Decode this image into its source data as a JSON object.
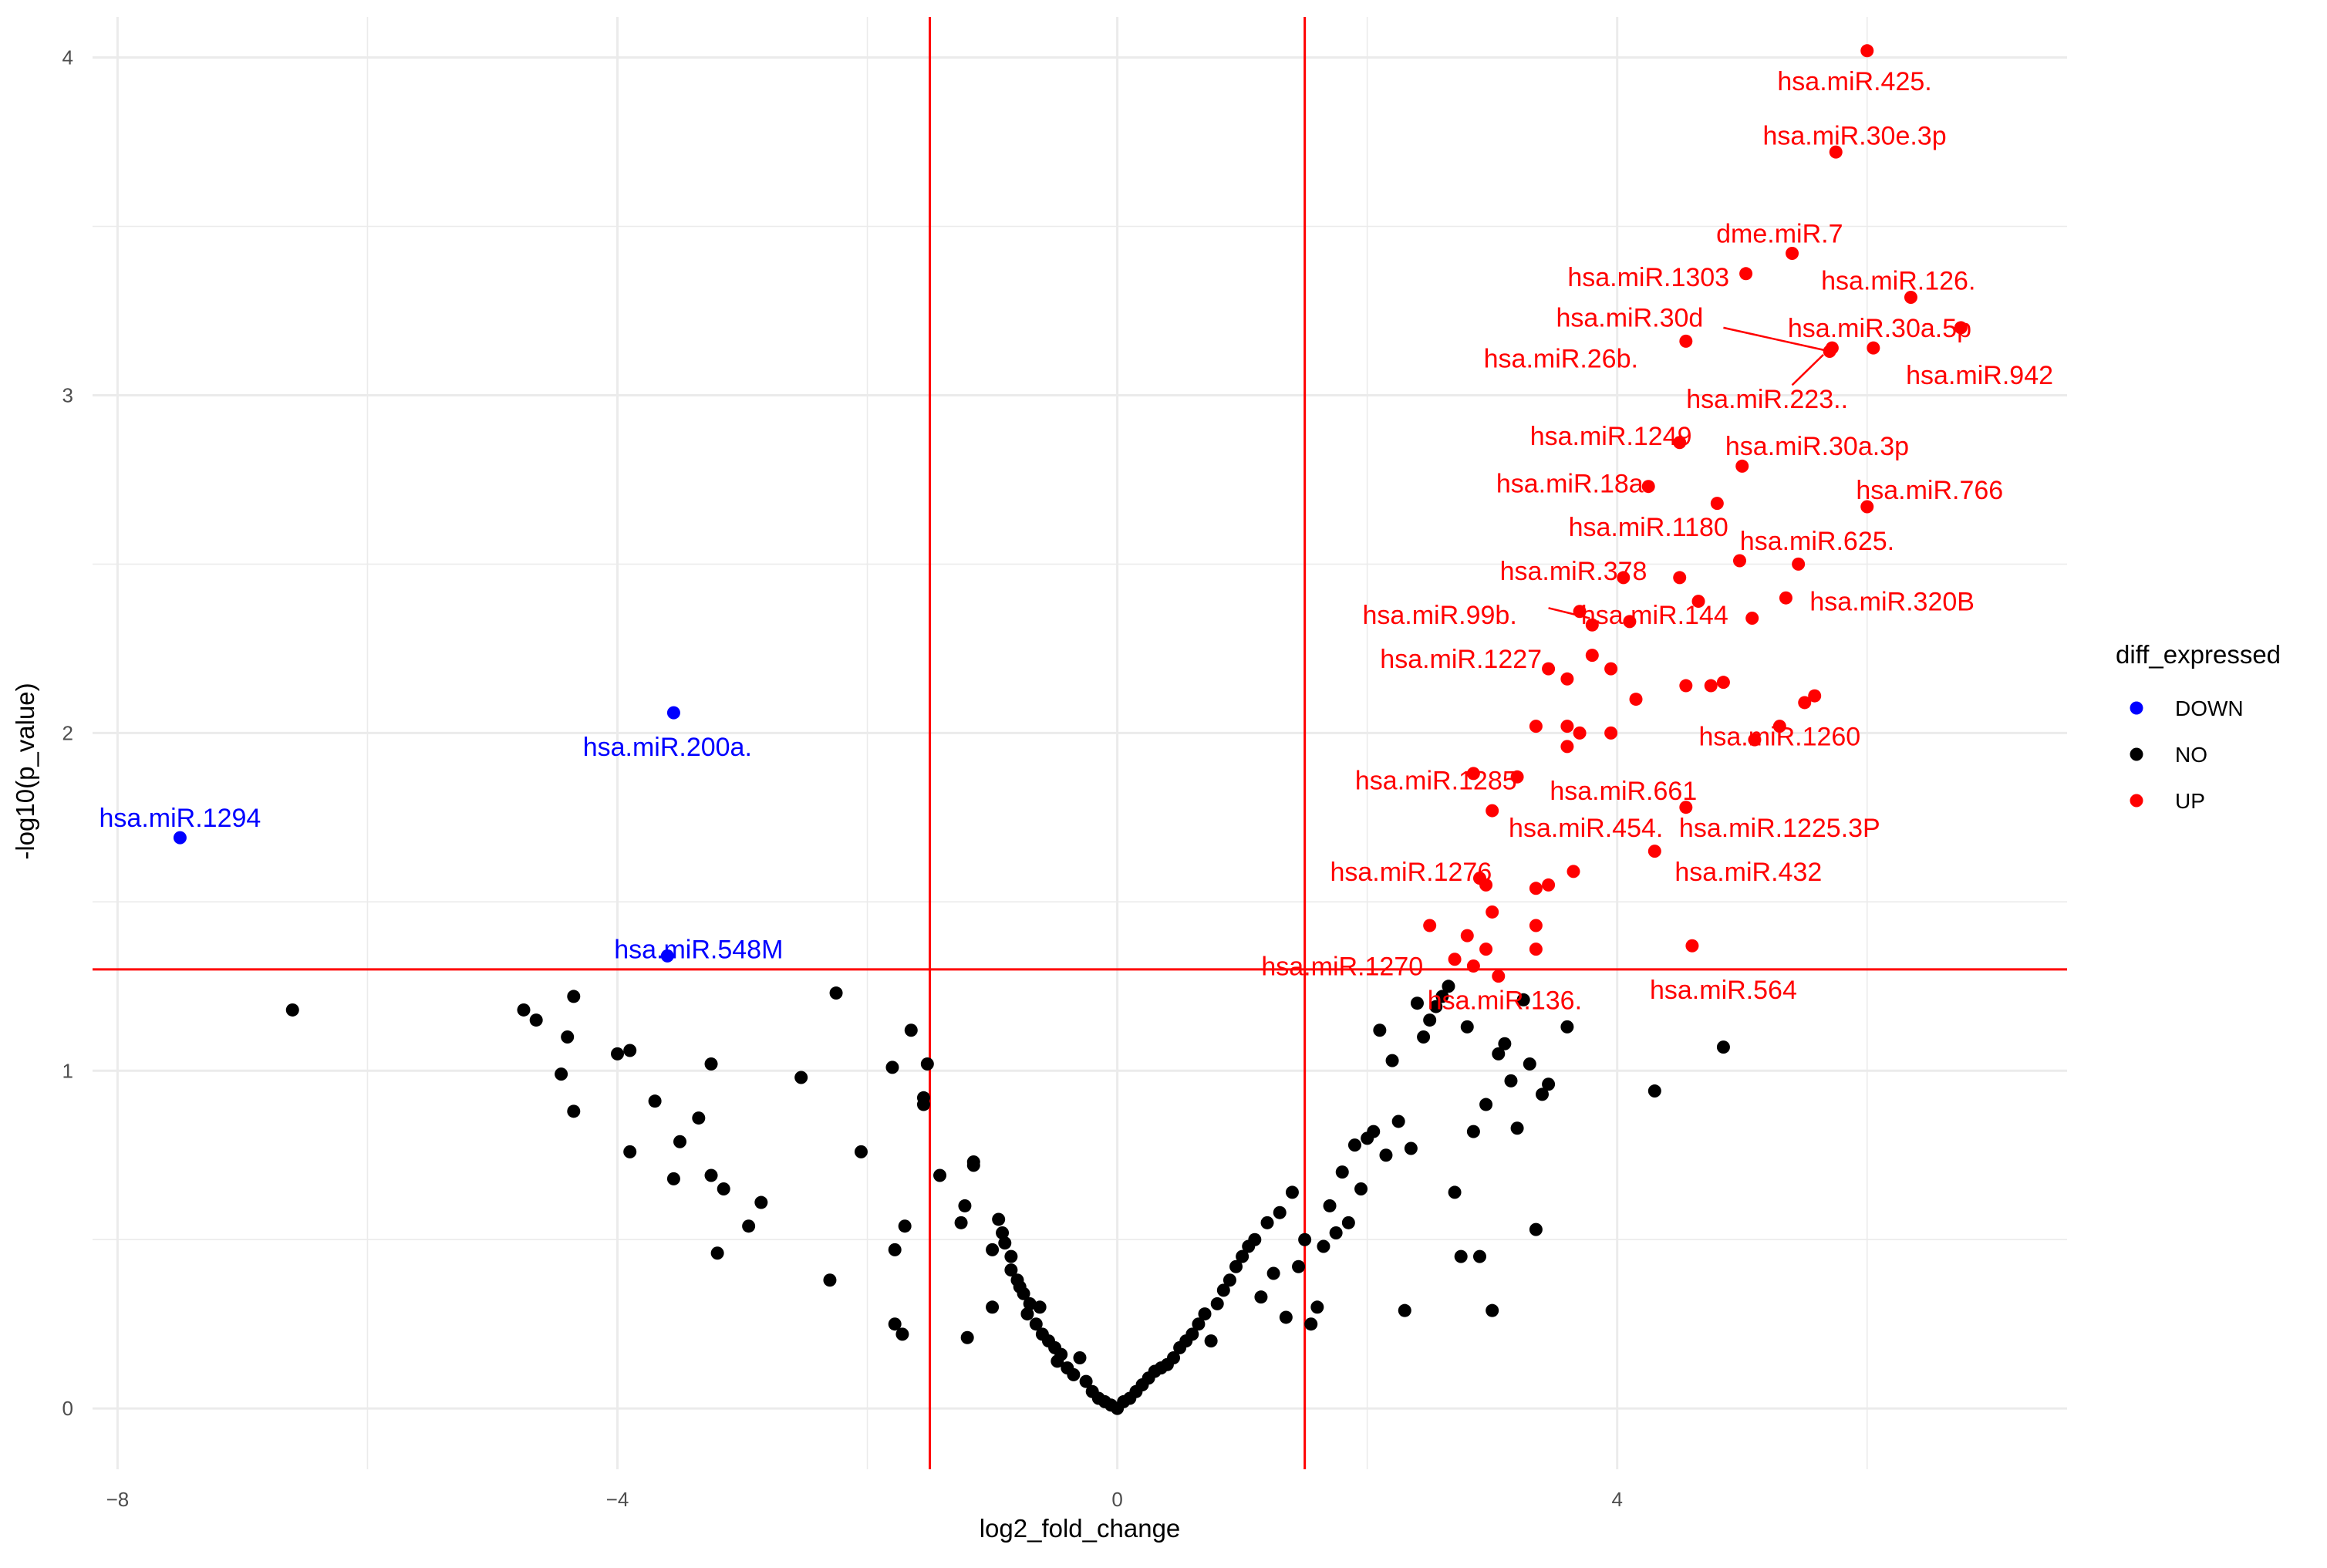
{
  "chart_data": {
    "type": "scatter",
    "title": "",
    "xlabel": "log2_fold_change",
    "ylabel": "-log10(p_value)",
    "xlim": [
      -8.2,
      7.6
    ],
    "ylim": [
      -0.18,
      4.12
    ],
    "x_ticks": [
      {
        "value": -8,
        "label": "−8"
      },
      {
        "value": -4,
        "label": "−4"
      },
      {
        "value": 0,
        "label": "0"
      },
      {
        "value": 4,
        "label": "4"
      }
    ],
    "y_ticks": [
      {
        "value": 0,
        "label": "0"
      },
      {
        "value": 1,
        "label": "1"
      },
      {
        "value": 2,
        "label": "2"
      },
      {
        "value": 3,
        "label": "3"
      },
      {
        "value": 4,
        "label": "4"
      }
    ],
    "grid": true,
    "thresholds": {
      "x": [
        -1.5,
        1.5
      ],
      "y": 1.3
    },
    "colors": {
      "DOWN": "#0000ff",
      "NO": "#000000",
      "UP": "#ff0000",
      "threshold": "#ff0000"
    },
    "legend": {
      "title": "diff_expressed",
      "position": "right",
      "entries": [
        {
          "name": "DOWN",
          "color": "#0000ff"
        },
        {
          "name": "NO",
          "color": "#000000"
        },
        {
          "name": "UP",
          "color": "#ff0000"
        }
      ]
    },
    "labels": [
      {
        "text": "hsa.miR.425.",
        "x": 5.9,
        "y": 3.93,
        "group": "UP"
      },
      {
        "text": "hsa.miR.30e.3p",
        "x": 5.9,
        "y": 3.77,
        "group": "UP"
      },
      {
        "text": "dme.miR.7",
        "x": 5.3,
        "y": 3.48,
        "group": "UP"
      },
      {
        "text": "hsa.miR.1303",
        "x": 4.25,
        "y": 3.35,
        "group": "UP"
      },
      {
        "text": "hsa.miR.126.",
        "x": 6.25,
        "y": 3.34,
        "group": "UP"
      },
      {
        "text": "hsa.miR.30d",
        "x": 4.1,
        "y": 3.23,
        "group": "UP"
      },
      {
        "text": "hsa.miR.30a.5p",
        "x": 6.1,
        "y": 3.2,
        "group": "UP"
      },
      {
        "text": "hsa.miR.26b.",
        "x": 3.55,
        "y": 3.11,
        "group": "UP"
      },
      {
        "text": "hsa.miR.942",
        "x": 6.9,
        "y": 3.06,
        "group": "UP"
      },
      {
        "text": "hsa.miR.223..",
        "x": 5.2,
        "y": 2.99,
        "group": "UP"
      },
      {
        "text": "hsa.miR.1249",
        "x": 3.95,
        "y": 2.88,
        "group": "UP"
      },
      {
        "text": "hsa.miR.30a.3p",
        "x": 5.6,
        "y": 2.85,
        "group": "UP"
      },
      {
        "text": "hsa.miR.18a.",
        "x": 3.65,
        "y": 2.74,
        "group": "UP"
      },
      {
        "text": "hsa.miR.766",
        "x": 6.5,
        "y": 2.72,
        "group": "UP"
      },
      {
        "text": "hsa.miR.1180",
        "x": 4.25,
        "y": 2.61,
        "group": "UP"
      },
      {
        "text": "hsa.miR.625.",
        "x": 5.6,
        "y": 2.57,
        "group": "UP"
      },
      {
        "text": "hsa.miR.378",
        "x": 3.65,
        "y": 2.48,
        "group": "UP"
      },
      {
        "text": "hsa.miR.320B",
        "x": 6.2,
        "y": 2.39,
        "group": "UP"
      },
      {
        "text": "hsa.miR.99b.",
        "x": 2.58,
        "y": 2.35,
        "group": "UP"
      },
      {
        "text": "hsa.miR.144",
        "x": 4.3,
        "y": 2.35,
        "group": "UP"
      },
      {
        "text": "hsa.miR.1227",
        "x": 2.75,
        "y": 2.22,
        "group": "UP"
      },
      {
        "text": "hsa.miR.200a.",
        "x": -3.6,
        "y": 1.96,
        "group": "DOWN"
      },
      {
        "text": "hsa.miR.1260",
        "x": 5.3,
        "y": 1.99,
        "group": "UP"
      },
      {
        "text": "hsa.miR.1294",
        "x": -7.5,
        "y": 1.75,
        "group": "DOWN"
      },
      {
        "text": "hsa.miR.1285",
        "x": 2.55,
        "y": 1.86,
        "group": "UP"
      },
      {
        "text": "hsa.miR.661",
        "x": 4.05,
        "y": 1.83,
        "group": "UP"
      },
      {
        "text": "hsa.miR.454.",
        "x": 3.75,
        "y": 1.72,
        "group": "UP"
      },
      {
        "text": "hsa.miR.1225.3P",
        "x": 5.3,
        "y": 1.72,
        "group": "UP"
      },
      {
        "text": "hsa.miR.1276",
        "x": 2.35,
        "y": 1.59,
        "group": "UP"
      },
      {
        "text": "hsa.miR.432",
        "x": 5.05,
        "y": 1.59,
        "group": "UP"
      },
      {
        "text": "hsa.miR.548M",
        "x": -3.35,
        "y": 1.36,
        "group": "DOWN"
      },
      {
        "text": "hsa.miR.1270",
        "x": 1.8,
        "y": 1.31,
        "group": "UP"
      },
      {
        "text": "hsa.miR.564",
        "x": 4.85,
        "y": 1.24,
        "group": "UP"
      },
      {
        "text": "hsa.miR.136.",
        "x": 3.1,
        "y": 1.21,
        "group": "UP"
      }
    ],
    "connectors": [
      {
        "from": [
          4.85,
          3.2
        ],
        "to": [
          5.7,
          3.13
        ]
      },
      {
        "from": [
          5.4,
          3.03
        ],
        "to": [
          5.65,
          3.12
        ]
      },
      {
        "from": [
          3.45,
          2.37
        ],
        "to": [
          3.78,
          2.34
        ]
      }
    ],
    "series": [
      {
        "name": "DOWN",
        "points": [
          [
            -7.5,
            1.69
          ],
          [
            -3.55,
            2.06
          ],
          [
            -3.6,
            1.34
          ]
        ]
      },
      {
        "name": "UP",
        "points": [
          [
            6.0,
            4.02
          ],
          [
            5.75,
            3.72
          ],
          [
            5.4,
            3.42
          ],
          [
            5.03,
            3.36
          ],
          [
            6.35,
            3.29
          ],
          [
            6.75,
            3.2
          ],
          [
            5.72,
            3.14
          ],
          [
            5.7,
            3.13
          ],
          [
            6.05,
            3.14
          ],
          [
            4.55,
            3.16
          ],
          [
            4.5,
            2.86
          ],
          [
            5.0,
            2.79
          ],
          [
            4.25,
            2.73
          ],
          [
            4.8,
            2.68
          ],
          [
            6.0,
            2.67
          ],
          [
            4.98,
            2.51
          ],
          [
            5.45,
            2.5
          ],
          [
            4.05,
            2.46
          ],
          [
            4.5,
            2.46
          ],
          [
            4.65,
            2.39
          ],
          [
            5.35,
            2.4
          ],
          [
            3.7,
            2.36
          ],
          [
            3.8,
            2.32
          ],
          [
            4.1,
            2.33
          ],
          [
            5.08,
            2.34
          ],
          [
            3.8,
            2.23
          ],
          [
            3.95,
            2.19
          ],
          [
            3.45,
            2.19
          ],
          [
            3.6,
            2.16
          ],
          [
            4.15,
            2.1
          ],
          [
            4.55,
            2.14
          ],
          [
            4.75,
            2.14
          ],
          [
            4.85,
            2.15
          ],
          [
            5.5,
            2.09
          ],
          [
            5.58,
            2.11
          ],
          [
            3.35,
            2.02
          ],
          [
            3.6,
            2.02
          ],
          [
            3.7,
            2.0
          ],
          [
            3.95,
            2.0
          ],
          [
            5.1,
            1.98
          ],
          [
            5.3,
            2.02
          ],
          [
            3.6,
            1.96
          ],
          [
            2.85,
            1.88
          ],
          [
            3.2,
            1.87
          ],
          [
            3.0,
            1.77
          ],
          [
            4.55,
            1.78
          ],
          [
            4.3,
            1.65
          ],
          [
            3.65,
            1.59
          ],
          [
            2.9,
            1.57
          ],
          [
            2.95,
            1.55
          ],
          [
            3.35,
            1.54
          ],
          [
            3.45,
            1.55
          ],
          [
            3.0,
            1.47
          ],
          [
            2.5,
            1.43
          ],
          [
            3.35,
            1.43
          ],
          [
            2.8,
            1.4
          ],
          [
            2.95,
            1.36
          ],
          [
            3.35,
            1.36
          ],
          [
            2.7,
            1.33
          ],
          [
            2.85,
            1.31
          ],
          [
            4.6,
            1.37
          ],
          [
            3.05,
            1.28
          ]
        ]
      },
      {
        "name": "NO",
        "points": [
          [
            -6.6,
            1.18
          ],
          [
            -4.75,
            1.18
          ],
          [
            -4.65,
            1.15
          ],
          [
            -4.4,
            1.1
          ],
          [
            -4.35,
            1.22
          ],
          [
            -4.45,
            0.99
          ],
          [
            -4.35,
            0.88
          ],
          [
            -4.0,
            1.05
          ],
          [
            -3.9,
            1.06
          ],
          [
            -3.9,
            0.76
          ],
          [
            -3.7,
            0.91
          ],
          [
            -3.55,
            0.68
          ],
          [
            -3.5,
            0.79
          ],
          [
            -3.35,
            0.86
          ],
          [
            -3.25,
            1.02
          ],
          [
            -3.25,
            0.69
          ],
          [
            -3.15,
            0.65
          ],
          [
            -3.2,
            0.46
          ],
          [
            -2.95,
            0.54
          ],
          [
            -2.85,
            0.61
          ],
          [
            -2.53,
            0.98
          ],
          [
            -2.3,
            0.38
          ],
          [
            -2.25,
            1.23
          ],
          [
            -2.05,
            0.76
          ],
          [
            -1.8,
            1.01
          ],
          [
            -1.78,
            0.47
          ],
          [
            -1.78,
            0.25
          ],
          [
            -1.72,
            0.22
          ],
          [
            -1.7,
            0.54
          ],
          [
            -1.65,
            1.12
          ],
          [
            -1.55,
            0.92
          ],
          [
            -1.55,
            0.9
          ],
          [
            -1.52,
            1.02
          ],
          [
            -1.42,
            0.69
          ],
          [
            -1.25,
            0.55
          ],
          [
            -1.22,
            0.6
          ],
          [
            -1.15,
            0.73
          ],
          [
            -1.15,
            0.72
          ],
          [
            -1.2,
            0.21
          ],
          [
            -1.0,
            0.47
          ],
          [
            -1.0,
            0.3
          ],
          [
            -0.95,
            0.56
          ],
          [
            -0.92,
            0.52
          ],
          [
            -0.9,
            0.49
          ],
          [
            -0.85,
            0.45
          ],
          [
            -0.85,
            0.41
          ],
          [
            -0.8,
            0.38
          ],
          [
            -0.78,
            0.36
          ],
          [
            -0.75,
            0.34
          ],
          [
            -0.7,
            0.31
          ],
          [
            -0.72,
            0.28
          ],
          [
            -0.65,
            0.25
          ],
          [
            -0.6,
            0.22
          ],
          [
            -0.55,
            0.2
          ],
          [
            -0.62,
            0.3
          ],
          [
            -0.5,
            0.18
          ],
          [
            -0.48,
            0.14
          ],
          [
            -0.45,
            0.16
          ],
          [
            -0.4,
            0.12
          ],
          [
            -0.35,
            0.1
          ],
          [
            -0.3,
            0.15
          ],
          [
            -0.25,
            0.08
          ],
          [
            -0.2,
            0.05
          ],
          [
            -0.15,
            0.03
          ],
          [
            -0.1,
            0.02
          ],
          [
            -0.05,
            0.01
          ],
          [
            0.0,
            0.0
          ],
          [
            0.05,
            0.02
          ],
          [
            0.1,
            0.03
          ],
          [
            0.15,
            0.05
          ],
          [
            0.2,
            0.07
          ],
          [
            0.25,
            0.09
          ],
          [
            0.3,
            0.11
          ],
          [
            0.35,
            0.12
          ],
          [
            0.4,
            0.13
          ],
          [
            0.45,
            0.15
          ],
          [
            0.5,
            0.18
          ],
          [
            0.55,
            0.2
          ],
          [
            0.6,
            0.22
          ],
          [
            0.65,
            0.25
          ],
          [
            0.7,
            0.28
          ],
          [
            0.75,
            0.2
          ],
          [
            0.8,
            0.31
          ],
          [
            0.85,
            0.35
          ],
          [
            0.9,
            0.38
          ],
          [
            0.95,
            0.42
          ],
          [
            1.0,
            0.45
          ],
          [
            1.05,
            0.48
          ],
          [
            1.1,
            0.5
          ],
          [
            1.15,
            0.33
          ],
          [
            1.2,
            0.55
          ],
          [
            1.25,
            0.4
          ],
          [
            1.3,
            0.58
          ],
          [
            1.35,
            0.27
          ],
          [
            1.4,
            0.64
          ],
          [
            1.45,
            0.42
          ],
          [
            1.5,
            0.5
          ],
          [
            1.55,
            0.25
          ],
          [
            1.6,
            0.3
          ],
          [
            1.65,
            0.48
          ],
          [
            1.7,
            0.6
          ],
          [
            1.75,
            0.52
          ],
          [
            1.8,
            0.7
          ],
          [
            1.85,
            0.55
          ],
          [
            1.9,
            0.78
          ],
          [
            1.95,
            0.65
          ],
          [
            2.0,
            0.8
          ],
          [
            2.05,
            0.82
          ],
          [
            2.1,
            1.12
          ],
          [
            2.15,
            0.75
          ],
          [
            2.2,
            1.03
          ],
          [
            2.25,
            0.85
          ],
          [
            2.3,
            0.29
          ],
          [
            2.35,
            0.77
          ],
          [
            2.4,
            1.2
          ],
          [
            2.45,
            1.1
          ],
          [
            2.5,
            1.15
          ],
          [
            2.55,
            1.19
          ],
          [
            2.6,
            1.22
          ],
          [
            2.65,
            1.25
          ],
          [
            2.7,
            0.64
          ],
          [
            2.75,
            0.45
          ],
          [
            2.8,
            1.13
          ],
          [
            2.85,
            0.82
          ],
          [
            2.9,
            0.45
          ],
          [
            2.95,
            0.9
          ],
          [
            3.0,
            0.29
          ],
          [
            3.05,
            1.05
          ],
          [
            3.1,
            1.08
          ],
          [
            3.15,
            0.97
          ],
          [
            3.2,
            0.83
          ],
          [
            3.25,
            1.21
          ],
          [
            3.3,
            1.02
          ],
          [
            3.35,
            0.53
          ],
          [
            3.4,
            0.93
          ],
          [
            3.45,
            0.96
          ],
          [
            3.6,
            1.13
          ],
          [
            4.3,
            0.94
          ],
          [
            4.85,
            1.07
          ]
        ]
      }
    ]
  }
}
